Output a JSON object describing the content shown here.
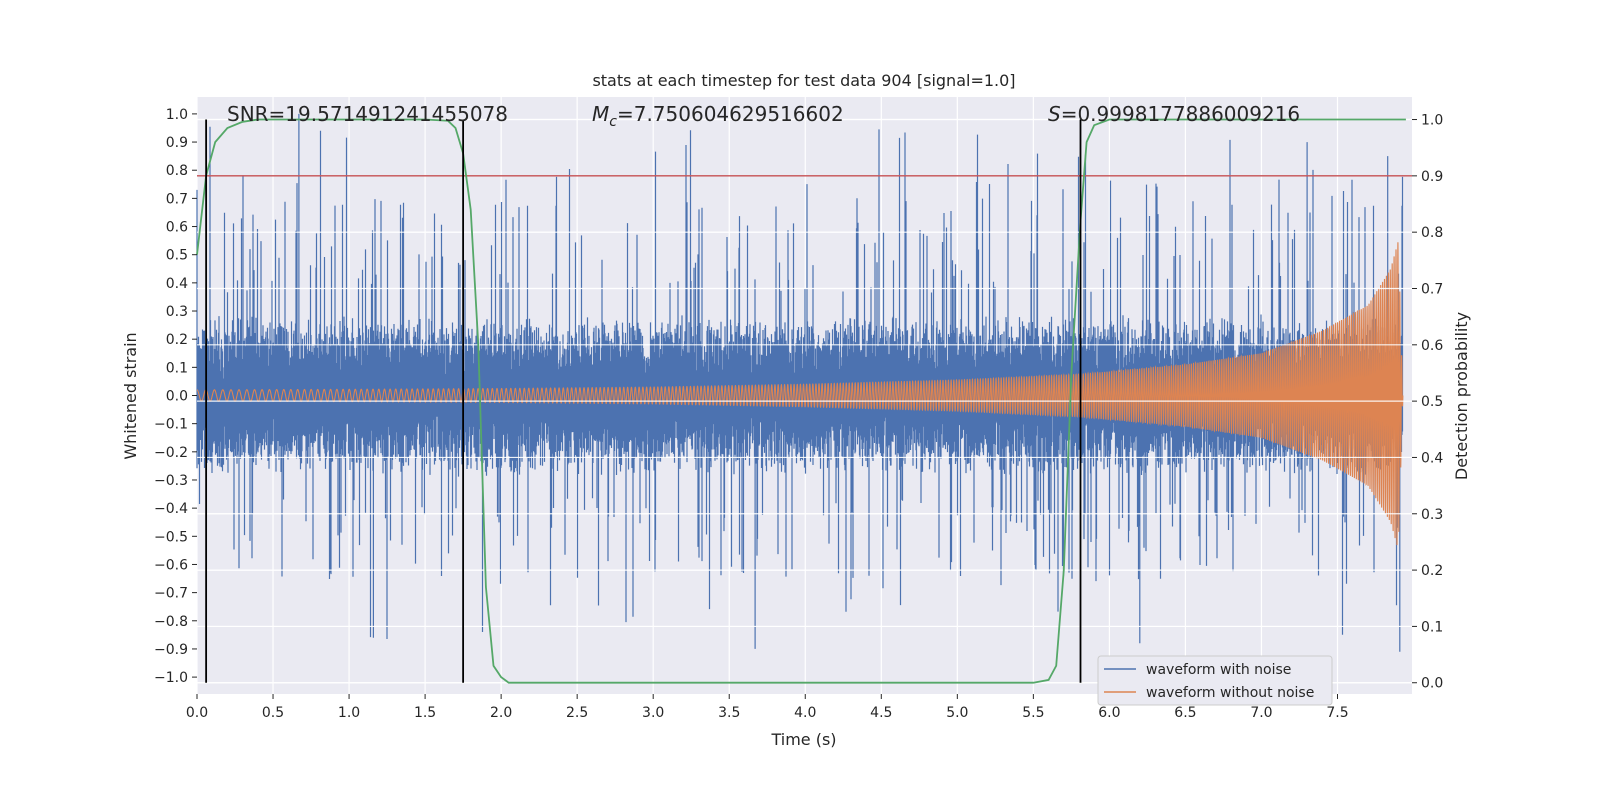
{
  "chart_data": {
    "type": "line",
    "title": "stats at each timestep for test data 904 [signal=1.0]",
    "xlabel": "Time (s)",
    "ylabel": "Whitened strain",
    "y2label": "Detection probability",
    "xlim": [
      0.0,
      7.99
    ],
    "ylim": [
      -1.06,
      1.06
    ],
    "y2lim": [
      -0.02,
      1.04
    ],
    "grid": true,
    "xticks": [
      0.0,
      0.5,
      1.0,
      1.5,
      2.0,
      2.5,
      3.0,
      3.5,
      4.0,
      4.5,
      5.0,
      5.5,
      6.0,
      6.5,
      7.0,
      7.5
    ],
    "xtick_labels": [
      "0.0",
      "0.5",
      "1.0",
      "1.5",
      "2.0",
      "2.5",
      "3.0",
      "3.5",
      "4.0",
      "4.5",
      "5.0",
      "5.5",
      "6.0",
      "6.5",
      "7.0",
      "7.5"
    ],
    "yticks": [
      -1.0,
      -0.9,
      -0.8,
      -0.7,
      -0.6,
      -0.5,
      -0.4,
      -0.3,
      -0.2,
      -0.1,
      0.0,
      0.1,
      0.2,
      0.3,
      0.4,
      0.5,
      0.6,
      0.7,
      0.8,
      0.9,
      1.0
    ],
    "ytick_labels": [
      "−1.0",
      "−0.9",
      "−0.8",
      "−0.7",
      "−0.6",
      "−0.5",
      "−0.4",
      "−0.3",
      "−0.2",
      "−0.1",
      "0.0",
      "0.1",
      "0.2",
      "0.3",
      "0.4",
      "0.5",
      "0.6",
      "0.7",
      "0.8",
      "0.9",
      "1.0"
    ],
    "y2ticks": [
      0.0,
      0.1,
      0.2,
      0.3,
      0.4,
      0.5,
      0.6,
      0.7,
      0.8,
      0.9,
      1.0
    ],
    "y2tick_labels": [
      "0.0",
      "0.1",
      "0.2",
      "0.3",
      "0.4",
      "0.5",
      "0.6",
      "0.7",
      "0.8",
      "0.9",
      "1.0"
    ],
    "annotations": {
      "snr": "SNR=19.571491241455078",
      "mc_symbol": "M",
      "mc_sub": "c",
      "mc_value": "=7.750604629516602",
      "s_symbol": "S",
      "s_value": "=0.9998177886009216"
    },
    "threshold": {
      "y2": 0.9,
      "color": "#c44e52"
    },
    "vlines": [
      0.06,
      1.75,
      5.81
    ],
    "noise_model": {
      "duration": 7.93,
      "envelope": 0.45,
      "spike_max": 1.0,
      "spike_min": -0.91
    },
    "waveform_model": {
      "amplitudes": [
        [
          0.0,
          0.02
        ],
        [
          1.0,
          0.022
        ],
        [
          2.0,
          0.025
        ],
        [
          3.0,
          0.03
        ],
        [
          4.0,
          0.04
        ],
        [
          5.0,
          0.055
        ],
        [
          5.8,
          0.075
        ],
        [
          6.5,
          0.11
        ],
        [
          7.0,
          0.15
        ],
        [
          7.4,
          0.23
        ],
        [
          7.7,
          0.32
        ],
        [
          7.85,
          0.45
        ],
        [
          7.9,
          0.55
        ],
        [
          7.93,
          0.0
        ]
      ],
      "frequency_start_hz": 17,
      "frequency_end_hz": 80
    },
    "probability": {
      "x": [
        0.0,
        0.06,
        0.12,
        0.2,
        0.3,
        0.4,
        0.6,
        1.0,
        1.5,
        1.65,
        1.7,
        1.75,
        1.8,
        1.85,
        1.9,
        1.95,
        2.0,
        2.05,
        2.2,
        2.5,
        3.0,
        4.0,
        5.0,
        5.5,
        5.6,
        5.65,
        5.7,
        5.75,
        5.81,
        5.85,
        5.9,
        6.0,
        6.5,
        7.0,
        7.5,
        7.95
      ],
      "y": [
        0.76,
        0.9,
        0.96,
        0.985,
        0.996,
        1.0,
        1.0,
        1.0,
        1.0,
        0.998,
        0.985,
        0.94,
        0.84,
        0.6,
        0.17,
        0.03,
        0.01,
        0.0,
        0.0,
        0.0,
        0.0,
        0.0,
        0.0,
        0.0,
        0.005,
        0.03,
        0.2,
        0.55,
        0.82,
        0.96,
        0.99,
        1.0,
        1.0,
        1.0,
        1.0,
        1.0
      ]
    },
    "series": [
      {
        "name": "waveform with noise",
        "color": "#4c72b0"
      },
      {
        "name": "waveform without noise",
        "color": "#dd8452"
      },
      {
        "name": "Detection probability",
        "color": "#55a868"
      }
    ],
    "legend": {
      "position": "bottom-right",
      "entries": [
        "waveform with noise",
        "waveform without noise"
      ]
    }
  }
}
